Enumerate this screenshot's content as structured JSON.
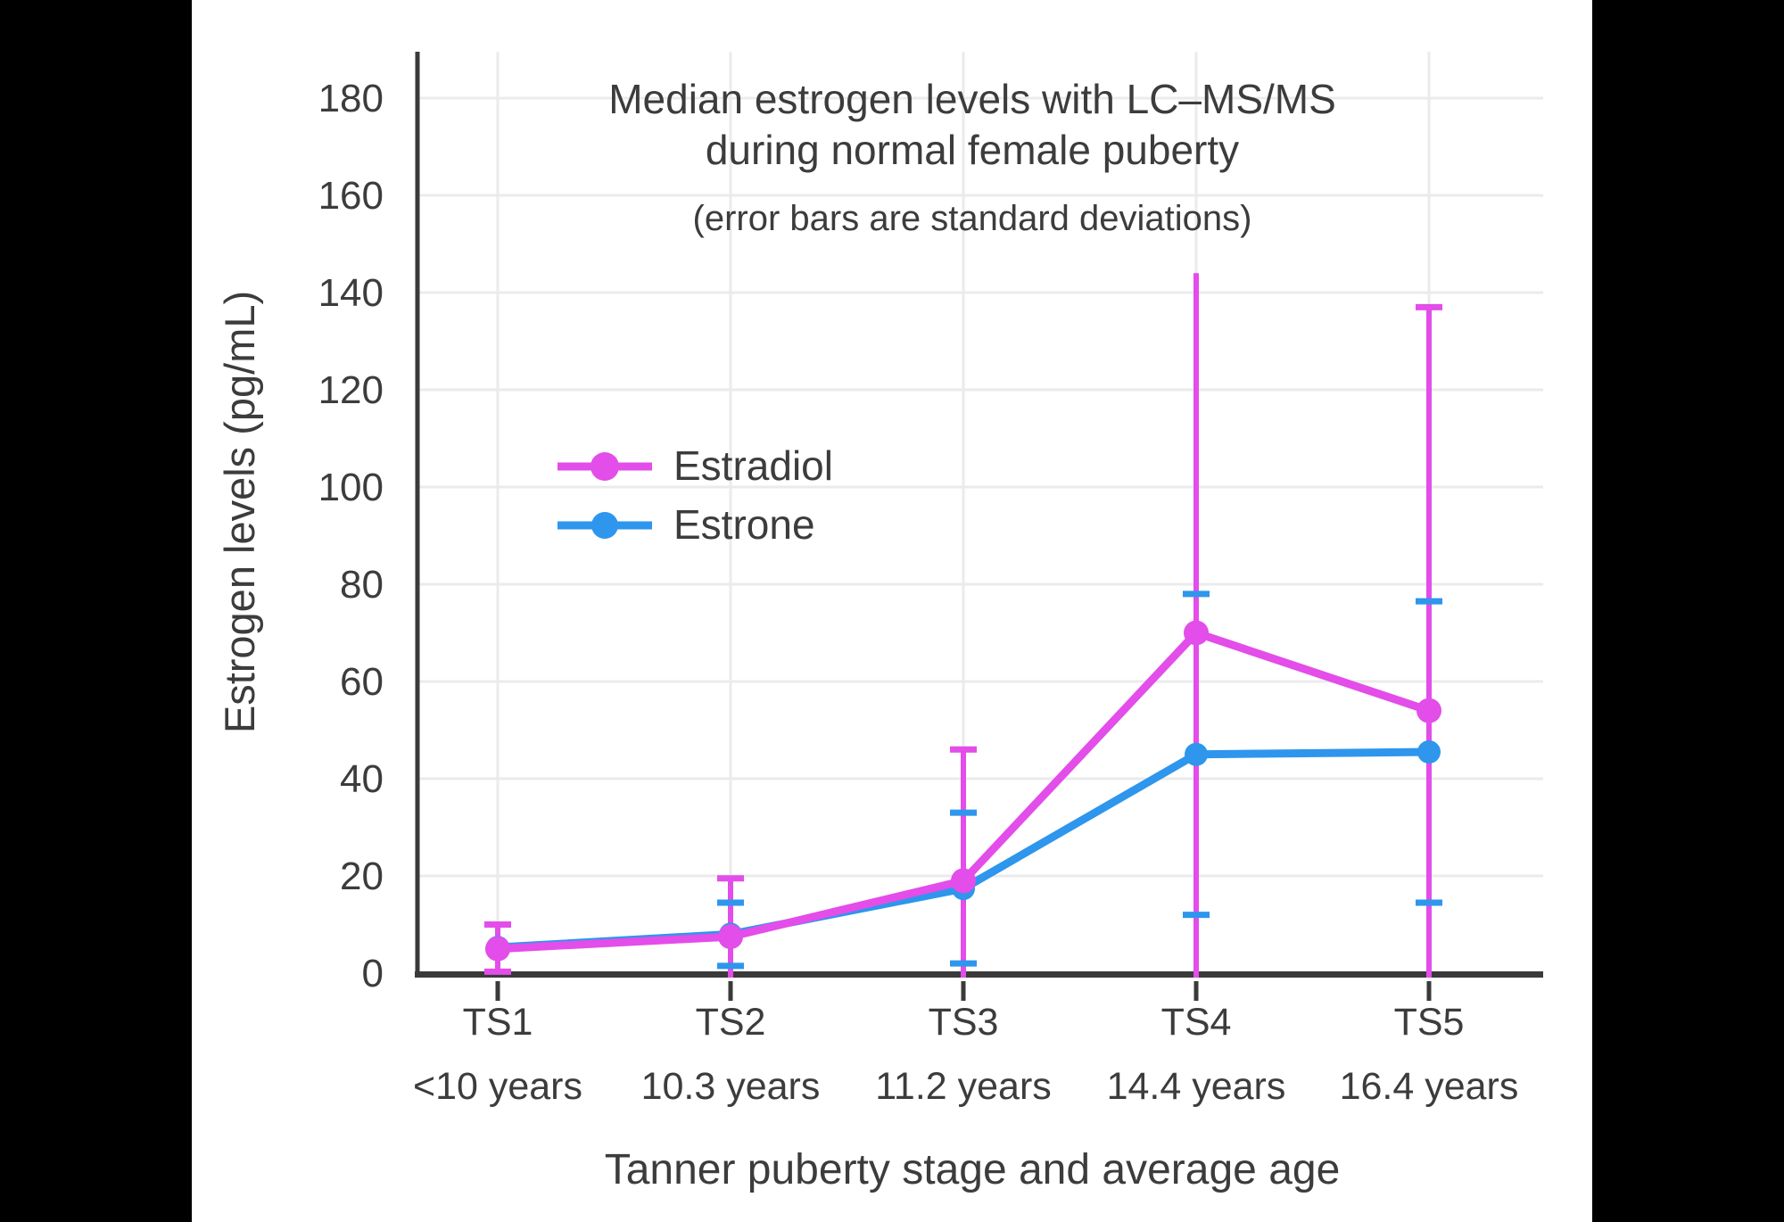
{
  "chart_data": {
    "type": "line",
    "title_lines": [
      "Median estrogen levels with LC–MS/MS",
      "during normal female puberty"
    ],
    "subtitle": "(error bars are standard deviations)",
    "xlabel": "Tanner puberty stage and average age",
    "ylabel": "Estrogen levels (pg/mL)",
    "ylim": [
      0,
      190
    ],
    "yticks": [
      0,
      20,
      40,
      60,
      80,
      100,
      120,
      140,
      160,
      180
    ],
    "grid": true,
    "legend_position": "upper-left-inside",
    "categories": [
      "TS1",
      "TS2",
      "TS3",
      "TS4",
      "TS5"
    ],
    "category_sublabels": [
      "<10 years",
      "10.3 years",
      "11.2 years",
      "14.4 years",
      "16.4 years"
    ],
    "series": [
      {
        "name": "Estrone",
        "color": "#2E96EC",
        "values": [
          5.3,
          8,
          17.4,
          45,
          45.5
        ],
        "error_bars": {
          "style": "caps-only",
          "upper_end": [
            null,
            14.5,
            33,
            78,
            76.5
          ],
          "upper_cap": [
            false,
            true,
            true,
            true,
            true
          ],
          "lower_end": [
            null,
            1.5,
            2,
            12,
            14.5
          ],
          "lower_cap": [
            false,
            true,
            true,
            true,
            true
          ]
        }
      },
      {
        "name": "Estradiol",
        "color": "#E34DE9",
        "values": [
          5,
          7.5,
          19,
          70,
          54
        ],
        "error_bars": {
          "style": "line-and-caps",
          "upper_end": [
            10,
            19.5,
            46,
            144,
            137
          ],
          "upper_cap": [
            true,
            true,
            true,
            false,
            true
          ],
          "lower_end": [
            0.3,
            "clipped",
            "clipped",
            "clipped",
            "clipped"
          ],
          "lower_cap": [
            true,
            false,
            false,
            false,
            false
          ]
        }
      }
    ],
    "colors": {
      "background": "#ffffff",
      "frame": "#000000",
      "grid": "#EBEBEB",
      "axis": "#3A3A3A",
      "text": "#3C3C3C"
    }
  }
}
